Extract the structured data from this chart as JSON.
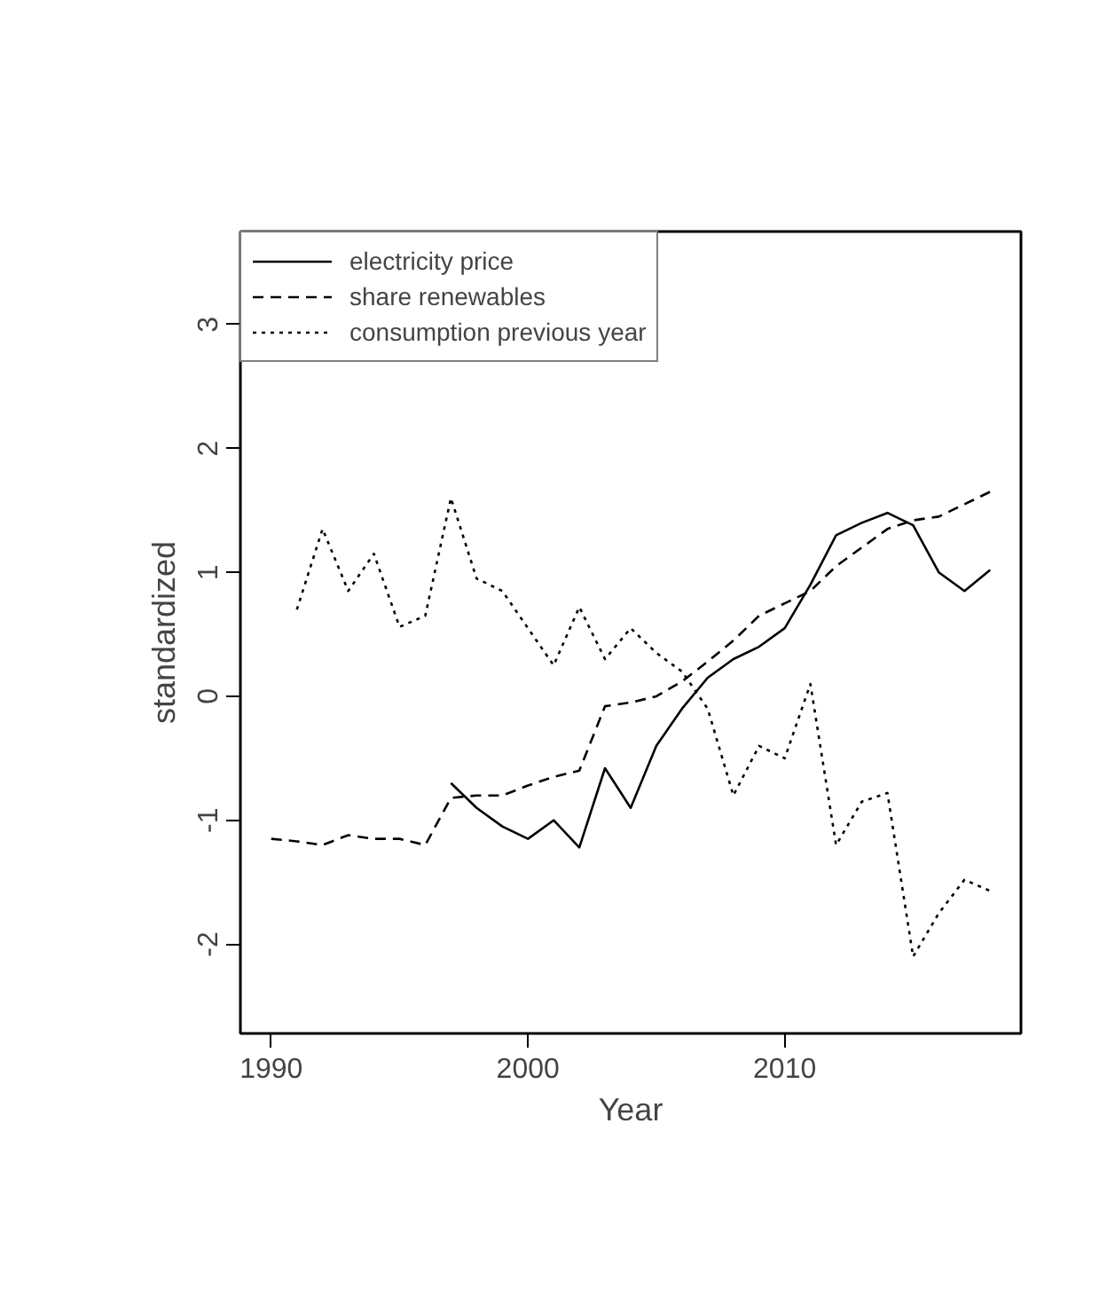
{
  "chart_data": {
    "type": "line",
    "xlabel": "Year",
    "ylabel": "standardized",
    "xlim": [
      1988.8,
      2019.2
    ],
    "ylim": [
      -2.72,
      3.75
    ],
    "xticks": [
      1990,
      2000,
      2010
    ],
    "yticks": [
      -2,
      -1,
      0,
      1,
      2,
      3
    ],
    "grid": false,
    "legend": "top left",
    "series": [
      {
        "name": "electricity price",
        "color": "#000000",
        "line_style": "solid",
        "x": [
          1997,
          1998,
          1999,
          2000,
          2001,
          2002,
          2003,
          2004,
          2005,
          2006,
          2007,
          2008,
          2009,
          2010,
          2011,
          2012,
          2013,
          2014,
          2015,
          2016,
          2017,
          2018
        ],
        "values": [
          -0.7,
          -0.9,
          -1.05,
          -1.15,
          -1.0,
          -1.22,
          -0.58,
          -0.9,
          -0.4,
          -0.1,
          0.15,
          0.3,
          0.4,
          0.55,
          0.9,
          1.3,
          1.4,
          1.48,
          1.38,
          1.0,
          0.85,
          1.02
        ]
      },
      {
        "name": "share renewables",
        "color": "#000000",
        "line_style": "dashed",
        "x": [
          1990,
          1991,
          1992,
          1993,
          1994,
          1995,
          1996,
          1997,
          1998,
          1999,
          2000,
          2001,
          2002,
          2003,
          2004,
          2005,
          2006,
          2007,
          2008,
          2009,
          2010,
          2011,
          2012,
          2013,
          2014,
          2015,
          2016,
          2017,
          2018
        ],
        "values": [
          -1.15,
          -1.17,
          -1.2,
          -1.12,
          -1.15,
          -1.15,
          -1.2,
          -0.82,
          -0.8,
          -0.8,
          -0.72,
          -0.65,
          -0.6,
          -0.08,
          -0.05,
          0.0,
          0.12,
          0.28,
          0.45,
          0.65,
          0.75,
          0.85,
          1.05,
          1.2,
          1.35,
          1.42,
          1.45,
          1.55,
          1.65
        ]
      },
      {
        "name": "consumption previous year",
        "color": "#000000",
        "line_style": "dotted",
        "x": [
          1991,
          1992,
          1993,
          1994,
          1995,
          1996,
          1997,
          1998,
          1999,
          2000,
          2001,
          2002,
          2003,
          2004,
          2005,
          2006,
          2007,
          2008,
          2009,
          2010,
          2011,
          2012,
          2013,
          2014,
          2015,
          2016,
          2017,
          2018
        ],
        "values": [
          0.7,
          1.35,
          0.85,
          1.15,
          0.56,
          0.65,
          1.6,
          0.95,
          0.85,
          0.55,
          0.25,
          0.72,
          0.3,
          0.55,
          0.35,
          0.2,
          -0.1,
          -0.8,
          -0.4,
          -0.5,
          0.1,
          -1.2,
          -0.85,
          -0.78,
          -2.1,
          -1.75,
          -1.48,
          -1.57
        ]
      }
    ]
  }
}
